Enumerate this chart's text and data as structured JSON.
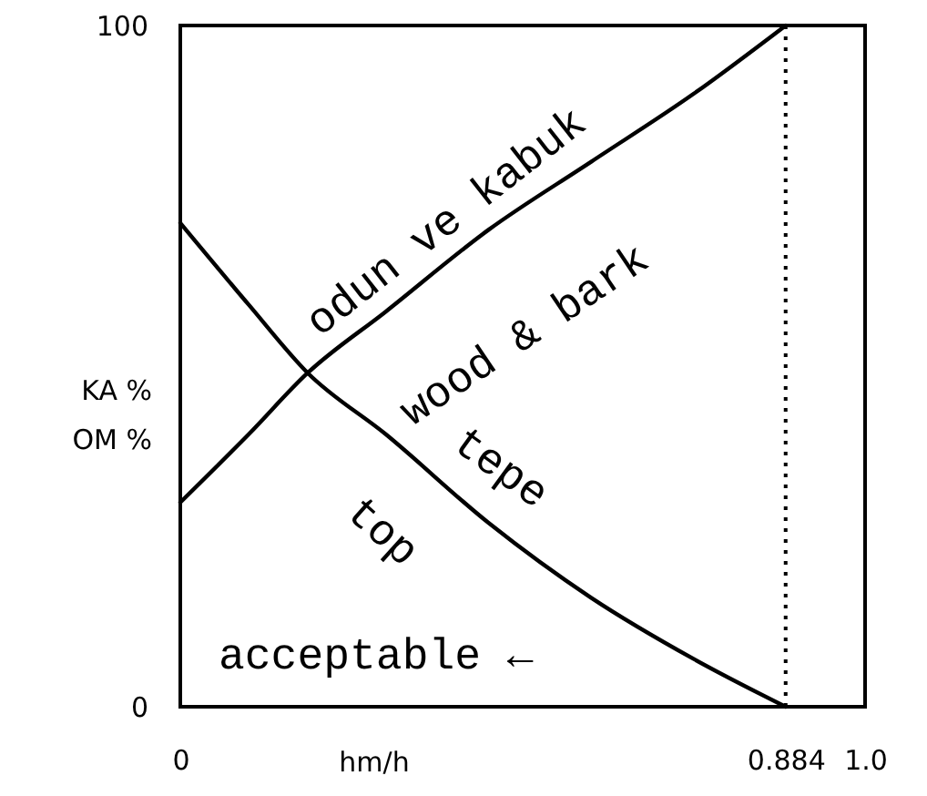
{
  "chart_data": {
    "type": "line",
    "xlabel": "hm/h",
    "ylabel": "KA %\nOM %",
    "x": [
      0,
      0.1,
      0.186,
      0.3,
      0.45,
      0.6,
      0.75,
      0.884
    ],
    "series": [
      {
        "color": "#000000",
        "values": [
          30,
          40,
          49,
          58,
          70,
          80,
          90,
          100
        ]
      },
      {
        "color": "#000000",
        "values": [
          71,
          59,
          49,
          40,
          27,
          16,
          7,
          0
        ]
      }
    ],
    "xlim": [
      0,
      1
    ],
    "ylim": [
      0,
      100
    ],
    "xticks": [
      0,
      0.884,
      {
        "value": 1,
        "label": "1.0"
      }
    ],
    "yticks": [
      0,
      100
    ],
    "ref_lines": [
      {
        "axis": "x",
        "value": 0.884,
        "line_style": "dotted",
        "color": "#000000"
      }
    ],
    "annotations": [
      "odun ve kabuk",
      "wood & bark",
      "top",
      "tepe",
      "acceptable ←"
    ],
    "line_style": "solid"
  }
}
